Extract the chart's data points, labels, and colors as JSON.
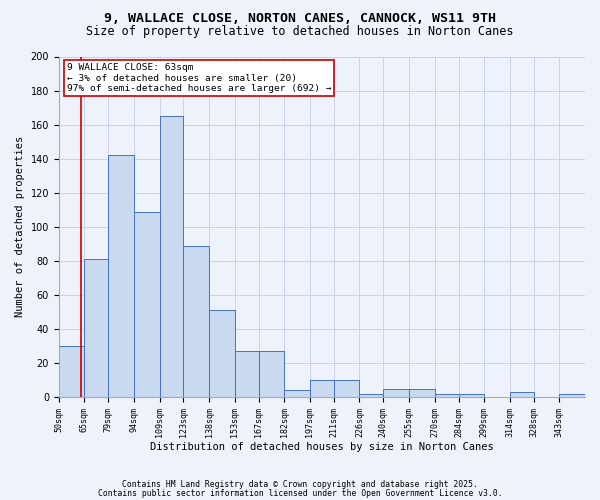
{
  "title1": "9, WALLACE CLOSE, NORTON CANES, CANNOCK, WS11 9TH",
  "title2": "Size of property relative to detached houses in Norton Canes",
  "xlabel": "Distribution of detached houses by size in Norton Canes",
  "ylabel": "Number of detached properties",
  "bins": [
    50,
    65,
    79,
    94,
    109,
    123,
    138,
    153,
    167,
    182,
    197,
    211,
    226,
    240,
    255,
    270,
    284,
    299,
    314,
    328,
    343
  ],
  "heights": [
    30,
    81,
    142,
    109,
    165,
    89,
    51,
    27,
    27,
    4,
    10,
    10,
    2,
    5,
    5,
    2,
    2,
    0,
    3,
    0,
    2
  ],
  "bar_color": "#c9d9f0",
  "bar_edge_color": "#4472c4",
  "bar_edge_width": 0.7,
  "grid_color": "#c8d4e8",
  "background_color": "#eef2fa",
  "axes_background": "#eef2fa",
  "red_line_x": 63,
  "annotation_text": "9 WALLACE CLOSE: 63sqm\n← 3% of detached houses are smaller (20)\n97% of semi-detached houses are larger (692) →",
  "annotation_box_color": "white",
  "annotation_edge_color": "#cc0000",
  "ylim": [
    0,
    200
  ],
  "yticks": [
    0,
    20,
    40,
    60,
    80,
    100,
    120,
    140,
    160,
    180,
    200
  ],
  "footer1": "Contains HM Land Registry data © Crown copyright and database right 2025.",
  "footer2": "Contains public sector information licensed under the Open Government Licence v3.0.",
  "title1_fontsize": 9.5,
  "title2_fontsize": 8.5,
  "tick_label_fontsize": 6,
  "ytick_fontsize": 7,
  "xlabel_fontsize": 7.5,
  "ylabel_fontsize": 7.5,
  "annotation_fontsize": 6.8,
  "footer_fontsize": 5.8
}
